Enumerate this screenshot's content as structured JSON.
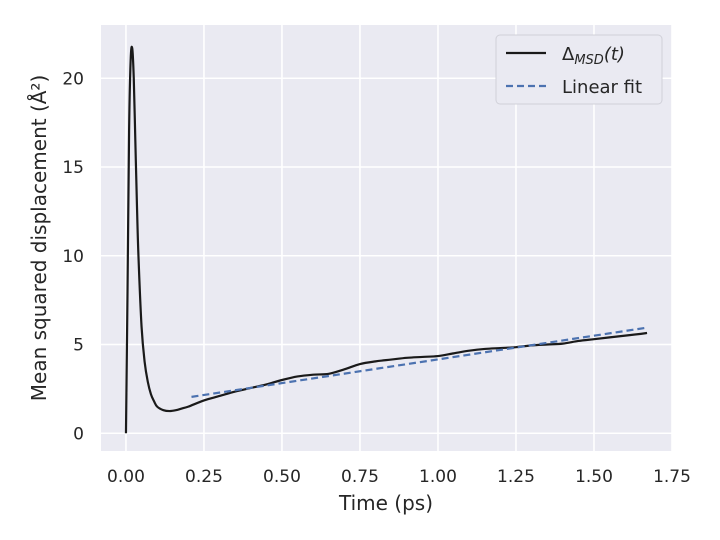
{
  "chart_data": {
    "type": "line",
    "xlabel": "Time (ps)",
    "ylabel": "Mean squared displacement (Å²)",
    "xlim": [
      -0.08,
      1.75
    ],
    "ylim": [
      -1,
      23
    ],
    "xticks": [
      "0.00",
      "0.25",
      "0.50",
      "0.75",
      "1.00",
      "1.25",
      "1.50",
      "1.75"
    ],
    "xtick_values": [
      0,
      0.25,
      0.5,
      0.75,
      1.0,
      1.25,
      1.5,
      1.75
    ],
    "yticks": [
      "0",
      "5",
      "10",
      "15",
      "20"
    ],
    "ytick_values": [
      0,
      5,
      10,
      15,
      20
    ],
    "grid": true,
    "legend_position": "top-right",
    "series": [
      {
        "name": "Δ_MSD(t)",
        "name_main": "Δ",
        "name_sub": "MSD",
        "name_suffix": "(t)",
        "style": "solid",
        "color": "#1a1a1a",
        "x": [
          0.0,
          0.005,
          0.01,
          0.015,
          0.02,
          0.025,
          0.03,
          0.035,
          0.04,
          0.05,
          0.06,
          0.07,
          0.08,
          0.09,
          0.1,
          0.12,
          0.14,
          0.16,
          0.18,
          0.2,
          0.25,
          0.3,
          0.35,
          0.4,
          0.45,
          0.5,
          0.55,
          0.6,
          0.65,
          0.7,
          0.75,
          0.8,
          0.85,
          0.9,
          0.95,
          1.0,
          1.05,
          1.1,
          1.15,
          1.2,
          1.25,
          1.3,
          1.35,
          1.4,
          1.45,
          1.5,
          1.55,
          1.6,
          1.65,
          1.67
        ],
        "y": [
          0.0,
          8.0,
          17.0,
          21.0,
          21.7,
          20.0,
          16.5,
          13.0,
          10.0,
          6.0,
          4.0,
          2.9,
          2.2,
          1.8,
          1.5,
          1.3,
          1.25,
          1.3,
          1.4,
          1.5,
          1.85,
          2.1,
          2.35,
          2.55,
          2.75,
          3.0,
          3.2,
          3.3,
          3.35,
          3.6,
          3.9,
          4.05,
          4.15,
          4.25,
          4.3,
          4.35,
          4.5,
          4.65,
          4.75,
          4.8,
          4.85,
          4.95,
          5.0,
          5.05,
          5.2,
          5.3,
          5.4,
          5.5,
          5.6,
          5.65
        ]
      },
      {
        "name": "Linear fit",
        "style": "dashed",
        "color": "#4c72b0",
        "x": [
          0.21,
          1.67
        ],
        "y": [
          2.05,
          5.95
        ]
      }
    ]
  }
}
